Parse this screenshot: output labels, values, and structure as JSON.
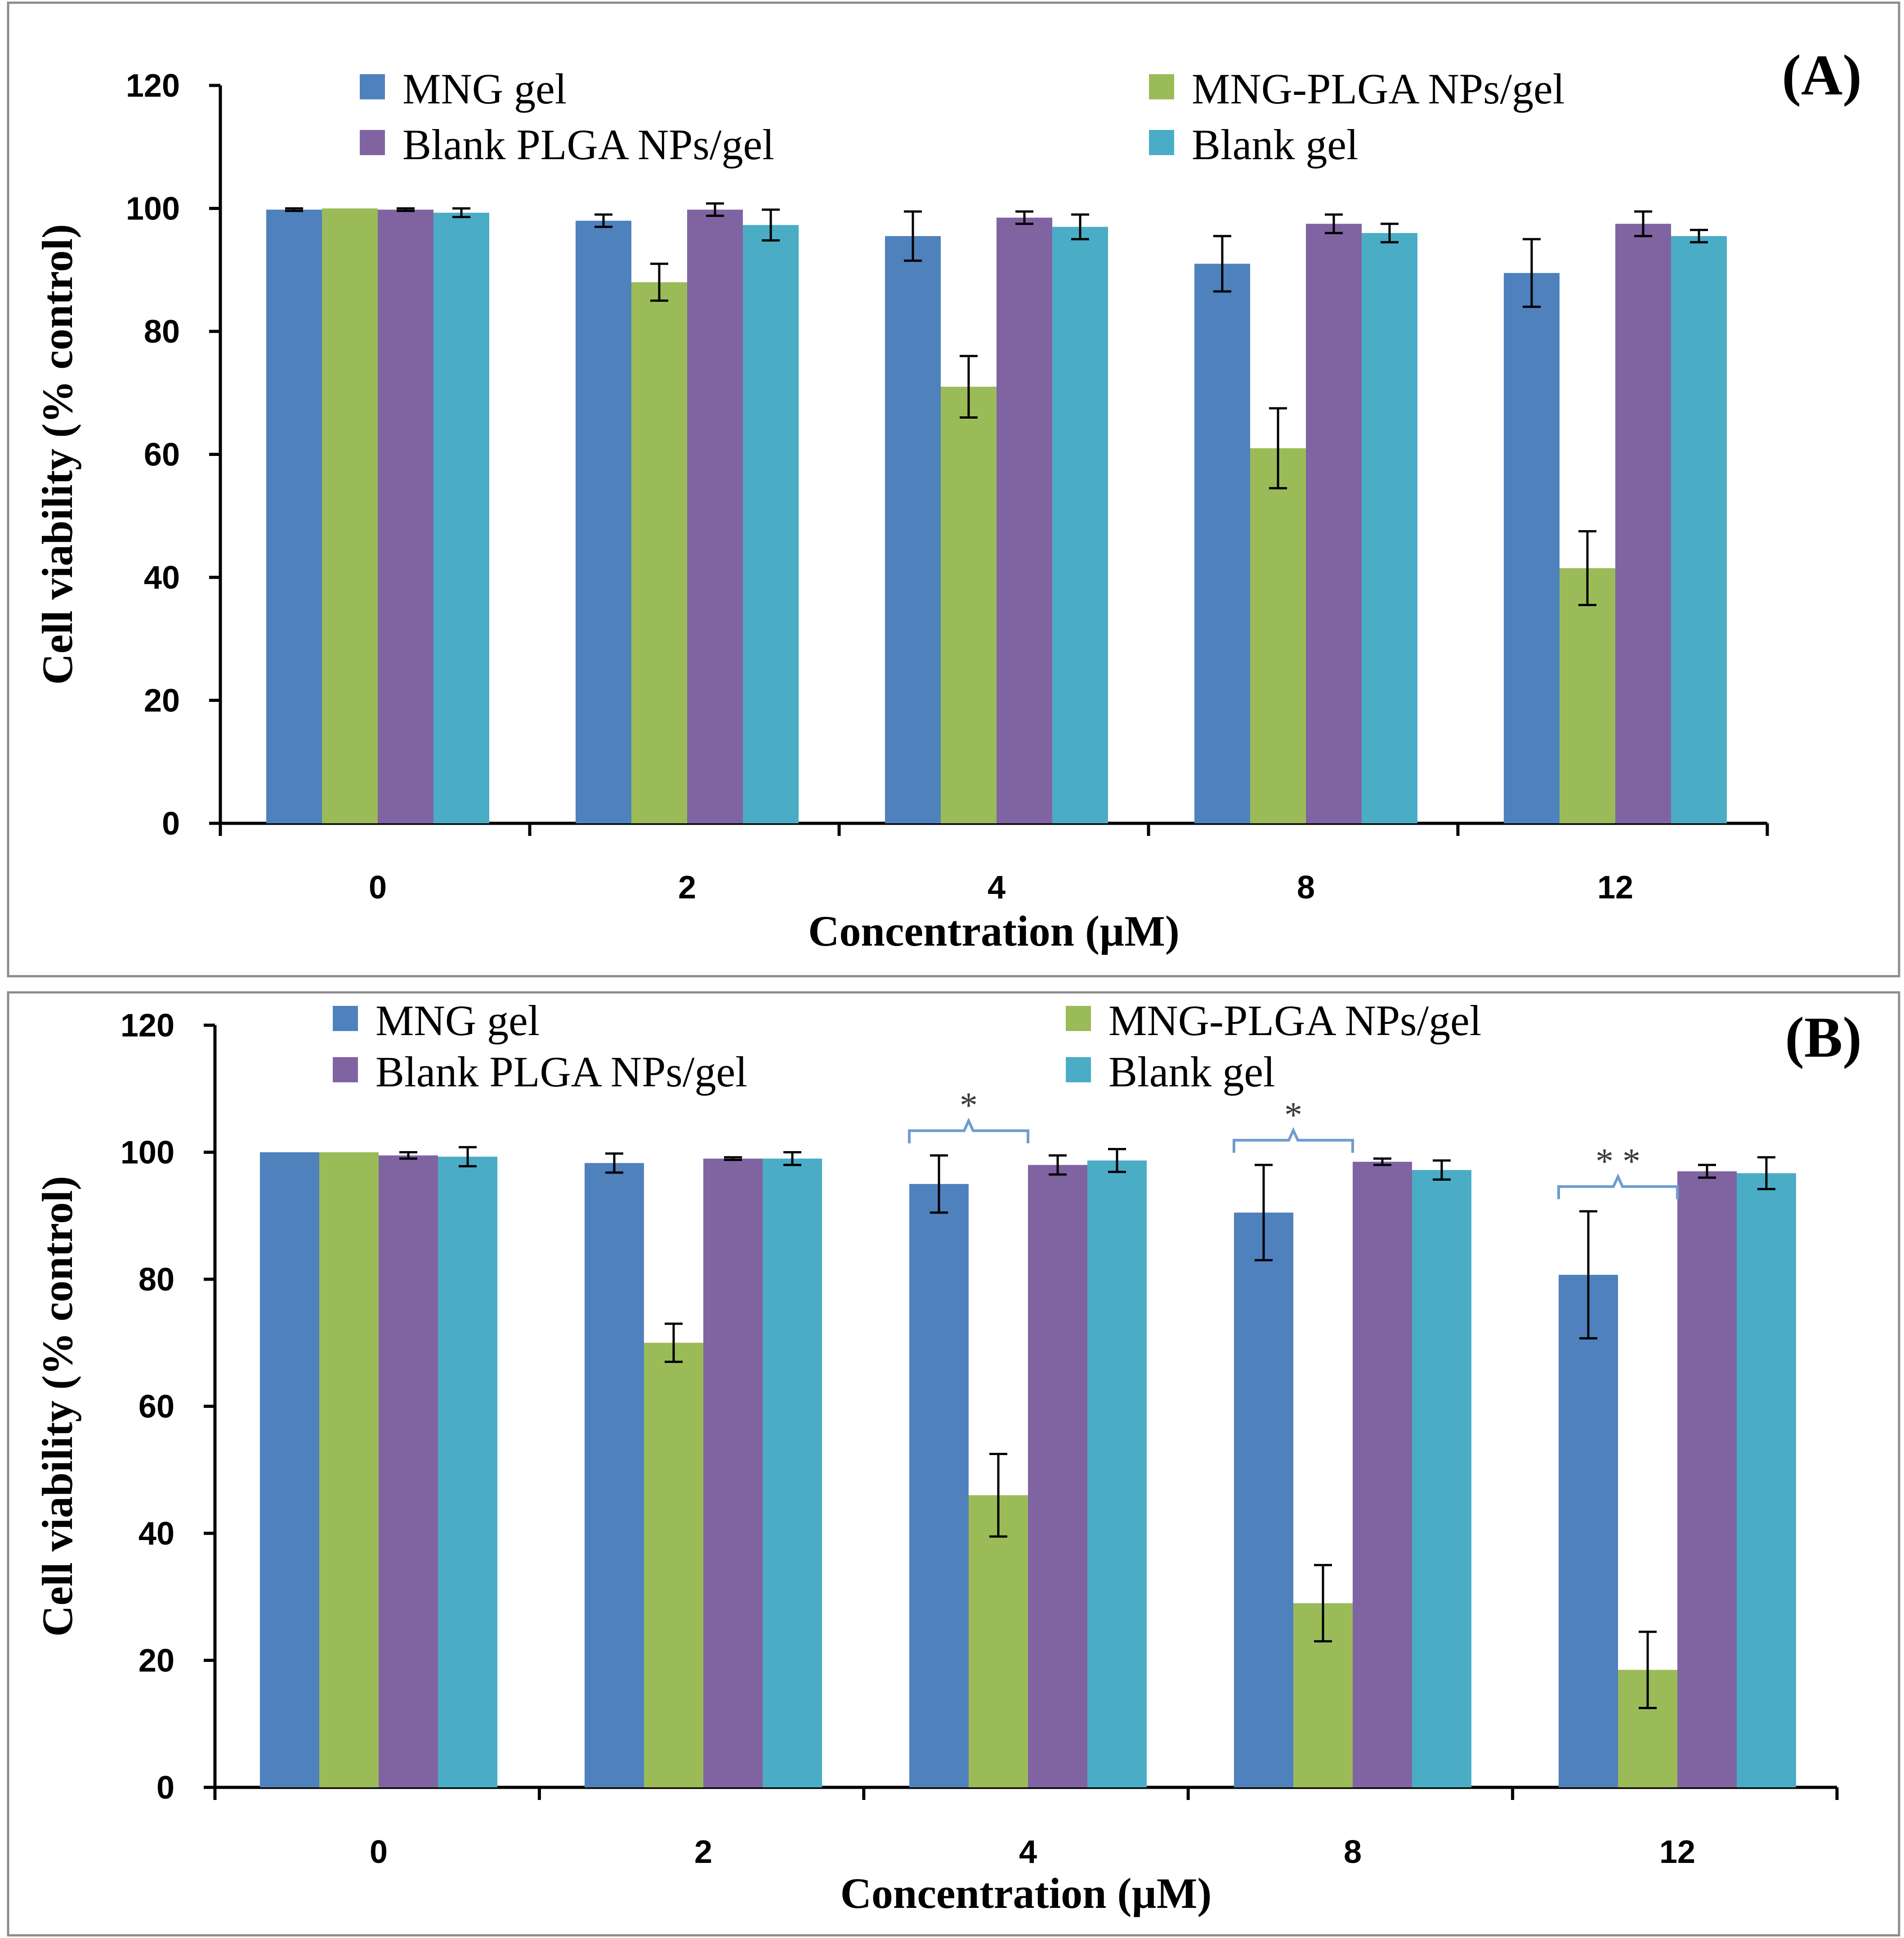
{
  "chart_data": [
    {
      "type": "bar",
      "panel_label": "(A)",
      "xlabel": "Concentration (µM)",
      "ylabel": "Cell viability (% control)",
      "ylim": [
        0,
        120
      ],
      "yticks": [
        "0",
        "20",
        "40",
        "60",
        "80",
        "100",
        "120"
      ],
      "categories": [
        "0",
        "2",
        "4",
        "8",
        "12"
      ],
      "legend_placement": "top",
      "series": [
        {
          "name": "MNG gel",
          "color": "#4f81bd",
          "values": [
            99.8,
            98.0,
            95.5,
            91.0,
            89.5
          ],
          "errors": [
            0.2,
            1.0,
            4.0,
            4.5,
            5.5
          ]
        },
        {
          "name": "MNG-PLGA NPs/gel",
          "color": "#9bbb59",
          "values": [
            100.0,
            88.0,
            71.0,
            61.0,
            41.5
          ],
          "errors": [
            0.0,
            3.0,
            5.0,
            6.5,
            6.0
          ]
        },
        {
          "name": "Blank PLGA NPs/gel",
          "color": "#8064a2",
          "values": [
            99.8,
            99.8,
            98.5,
            97.5,
            97.5
          ],
          "errors": [
            0.2,
            1.0,
            1.0,
            1.5,
            2.0
          ]
        },
        {
          "name": "Blank gel",
          "color": "#4bacc6",
          "values": [
            99.3,
            97.3,
            97.0,
            96.0,
            95.5
          ],
          "errors": [
            0.7,
            2.5,
            2.0,
            1.5,
            1.0
          ]
        }
      ],
      "significance": []
    },
    {
      "type": "bar",
      "panel_label": "(B)",
      "xlabel": "Concentration (µM)",
      "ylabel": "Cell viability (% control)",
      "ylim": [
        0,
        120
      ],
      "yticks": [
        "0",
        "20",
        "40",
        "60",
        "80",
        "100",
        "120"
      ],
      "categories": [
        "0",
        "2",
        "4",
        "8",
        "12"
      ],
      "legend_placement": "top",
      "series": [
        {
          "name": "MNG gel",
          "color": "#4f81bd",
          "values": [
            100.0,
            98.3,
            95.0,
            90.5,
            80.7
          ],
          "errors": [
            0.0,
            1.5,
            4.5,
            7.5,
            10.0
          ]
        },
        {
          "name": "MNG-PLGA NPs/gel",
          "color": "#9bbb59",
          "values": [
            100.0,
            70.0,
            46.0,
            29.0,
            18.5
          ],
          "errors": [
            0.0,
            3.0,
            6.5,
            6.0,
            6.0
          ]
        },
        {
          "name": "Blank PLGA NPs/gel",
          "color": "#8064a2",
          "values": [
            99.5,
            99.0,
            98.0,
            98.5,
            97.0
          ],
          "errors": [
            0.5,
            0.2,
            1.5,
            0.5,
            1.0
          ]
        },
        {
          "name": "Blank gel",
          "color": "#4bacc6",
          "values": [
            99.3,
            99.0,
            98.7,
            97.2,
            96.7
          ],
          "errors": [
            1.5,
            1.0,
            1.8,
            1.5,
            2.5
          ]
        }
      ],
      "significance": [
        {
          "category_index": 2,
          "mark": "*"
        },
        {
          "category_index": 3,
          "mark": "*"
        },
        {
          "category_index": 4,
          "mark": "* *"
        }
      ]
    }
  ]
}
